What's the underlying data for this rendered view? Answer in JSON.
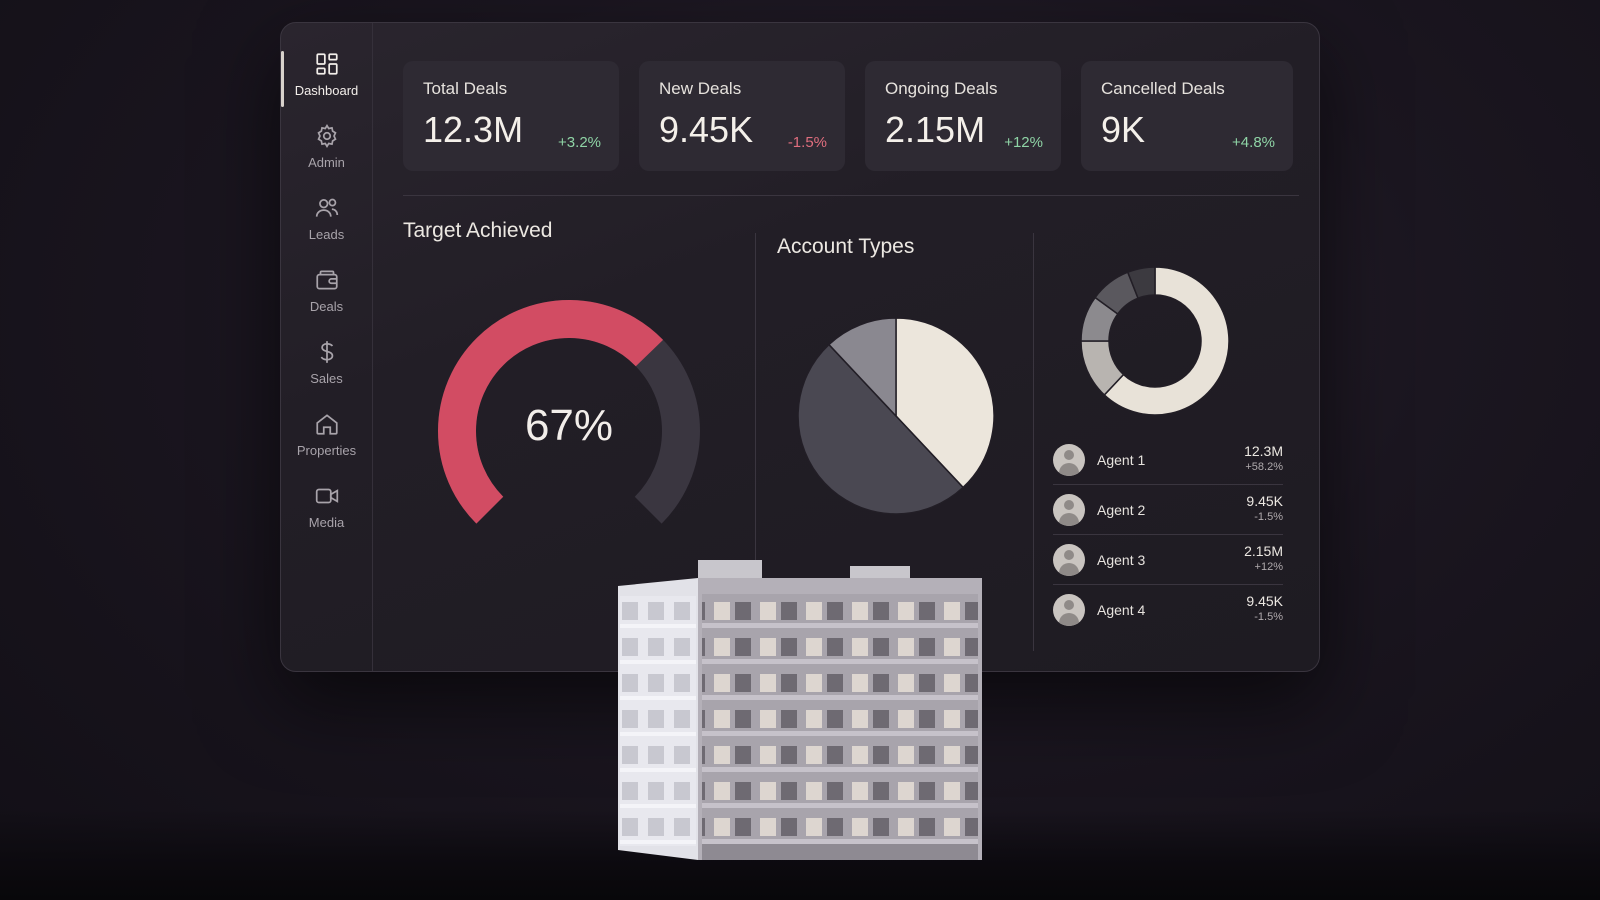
{
  "sidebar": {
    "items": [
      {
        "label": "Dashboard",
        "icon": "dashboard-icon",
        "active": true
      },
      {
        "label": "Admin",
        "icon": "gear-icon"
      },
      {
        "label": "Leads",
        "icon": "users-icon"
      },
      {
        "label": "Deals",
        "icon": "wallet-icon"
      },
      {
        "label": "Sales",
        "icon": "dollar-icon"
      },
      {
        "label": "Properties",
        "icon": "home-icon"
      },
      {
        "label": "Media",
        "icon": "video-icon"
      }
    ]
  },
  "kpis": [
    {
      "title": "Total Deals",
      "value": "12.3M",
      "change": "+3.2%",
      "trend": "up"
    },
    {
      "title": "New Deals",
      "value": "9.45K",
      "change": "-1.5%",
      "trend": "down"
    },
    {
      "title": "Ongoing Deals",
      "value": "2.15M",
      "change": "+12%",
      "trend": "up"
    },
    {
      "title": "Cancelled Deals",
      "value": "9K",
      "change": "+4.8%",
      "trend": "up"
    }
  ],
  "target": {
    "title": "Target Achieved",
    "value_label": "67%",
    "fraction": 0.67
  },
  "account_types": {
    "title": "Account Types"
  },
  "agents": [
    {
      "name": "Agent 1",
      "amount": "12.3M",
      "change": "+58.2%"
    },
    {
      "name": "Agent 2",
      "amount": "9.45K",
      "change": "-1.5%"
    },
    {
      "name": "Agent 3",
      "amount": "2.15M",
      "change": "+12%"
    },
    {
      "name": "Agent 4",
      "amount": "9.45K",
      "change": "-1.5%"
    }
  ],
  "chart_data": [
    {
      "type": "pie",
      "values": [
        38,
        50,
        12
      ],
      "colors": [
        "#ece6dc",
        "#4a4852",
        "#8a8890"
      ]
    },
    {
      "type": "pie",
      "values": [
        62,
        13,
        10,
        9,
        6
      ],
      "colors": [
        "#e8e2d8",
        "#b8b4b0",
        "#8c8a8e",
        "#5a585e",
        "#3c3a40"
      ]
    }
  ],
  "colors": {
    "accent": "#d24c63",
    "positive": "#8fd4a6",
    "negative": "#e06e7e"
  }
}
